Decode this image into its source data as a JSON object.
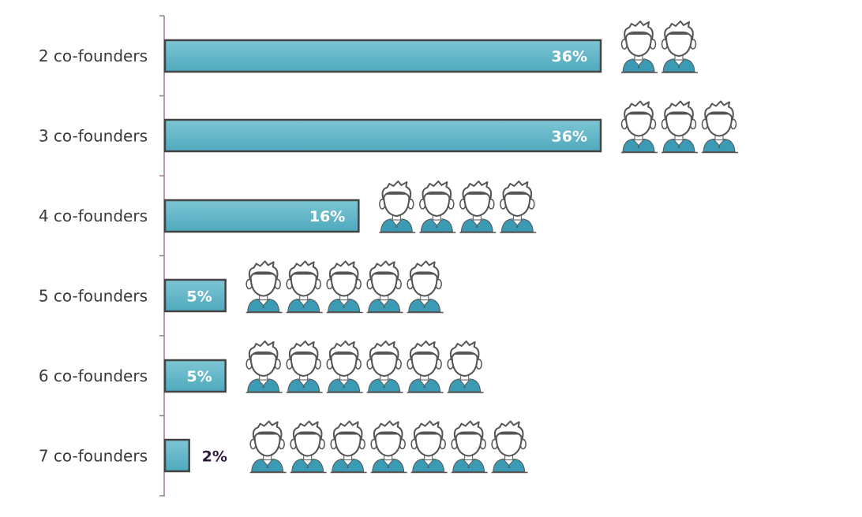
{
  "chart_data": {
    "type": "bar",
    "orientation": "horizontal",
    "title": "",
    "xlabel": "",
    "ylabel": "",
    "categories": [
      "2 co-founders",
      "3 co-founders",
      "4 co-founders",
      "5 co-founders",
      "6 co-founders",
      "7 co-founders"
    ],
    "values": [
      36,
      36,
      16,
      5,
      5,
      2
    ],
    "value_labels": [
      "36%",
      "36%",
      "16%",
      "5%",
      "5%",
      "2%"
    ],
    "person_icon_counts": [
      2,
      3,
      4,
      5,
      6,
      7
    ],
    "xlim": [
      0,
      36
    ],
    "grid": false,
    "legend": "none",
    "colors": {
      "bar_fill": "#5cb6c8",
      "bar_fill_light": "#7dc6d5",
      "bar_stroke": "#444444",
      "label_inside": "#ffffff",
      "label_outside": "#2e1a3a",
      "axis": "#9a7a9a",
      "icon_shirt": "#3b9bb5",
      "icon_line": "#555555"
    },
    "icon": "person-icon"
  }
}
